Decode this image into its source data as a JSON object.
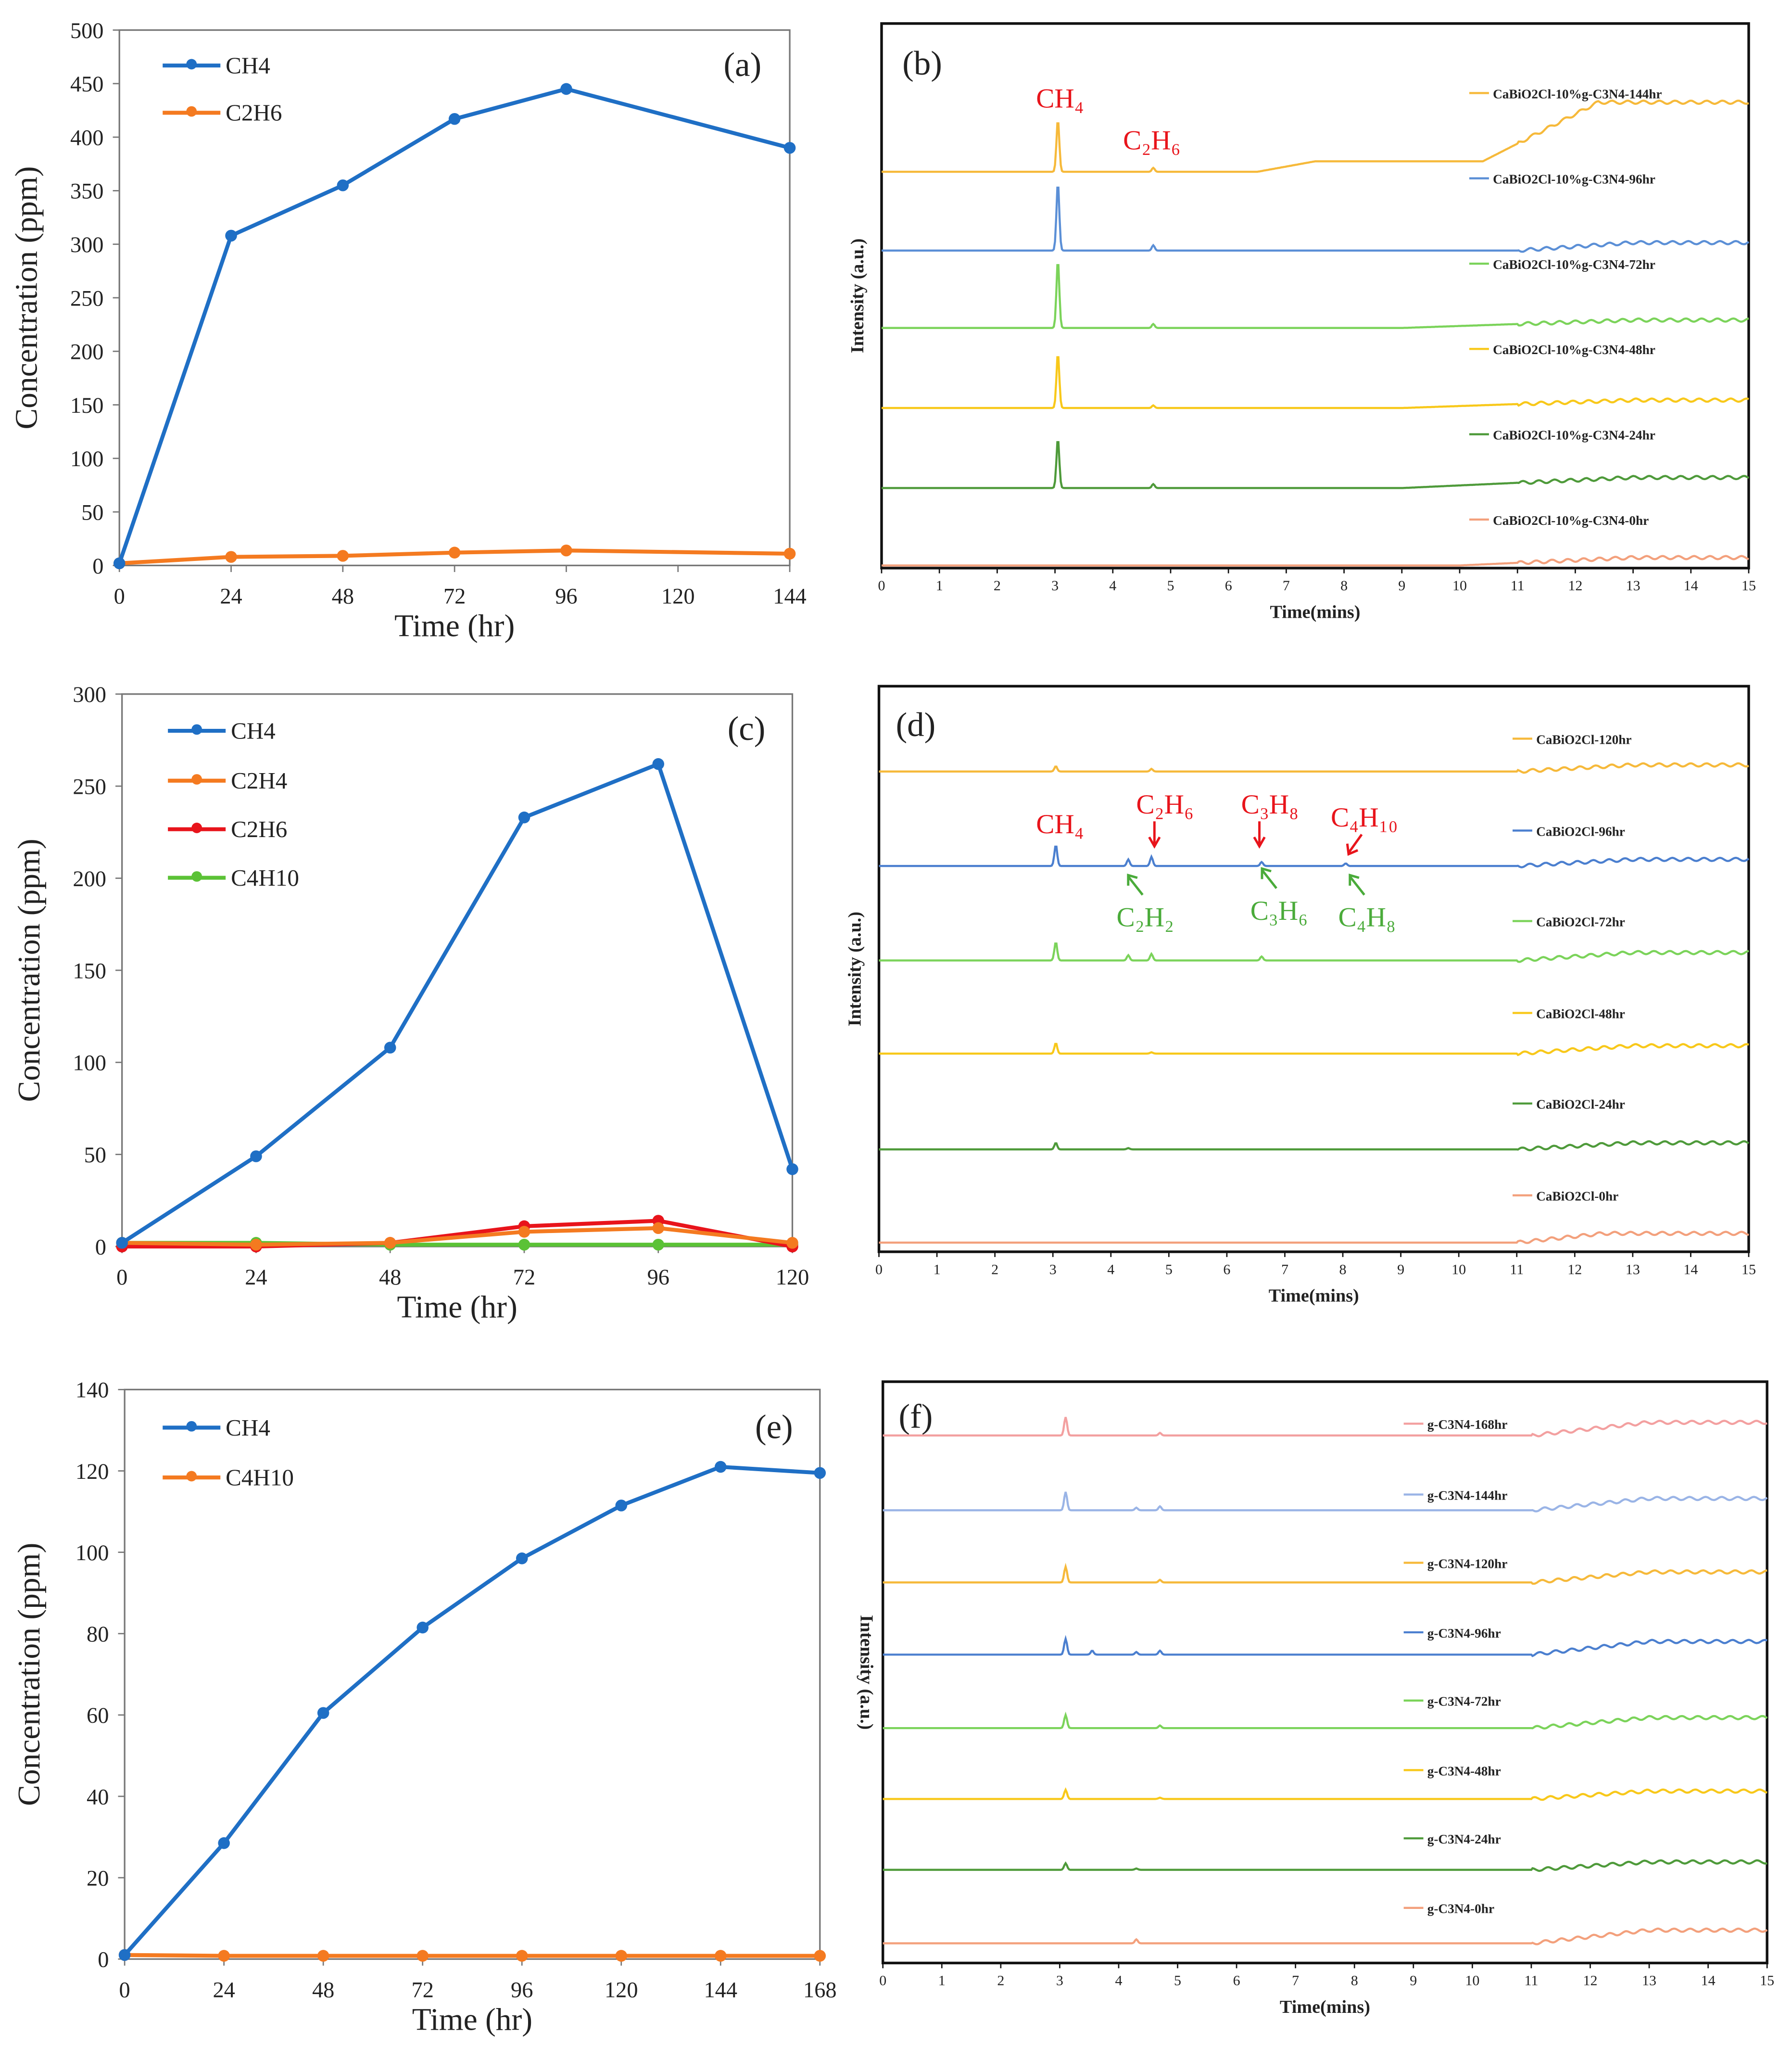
{
  "chart_data": [
    {
      "type": "line",
      "panel_label": "(a)",
      "xlabel": "Time (hr)",
      "ylabel": "Concentration (ppm)",
      "xlim": [
        0,
        144
      ],
      "ylim": [
        0,
        500
      ],
      "xticks": [
        0,
        24,
        48,
        72,
        96,
        120,
        144
      ],
      "yticks": [
        0,
        50,
        100,
        150,
        200,
        250,
        300,
        350,
        400,
        450,
        500
      ],
      "legend_position": "top-left",
      "series": [
        {
          "name": "CH4",
          "color": "#1f6fc5",
          "x": [
            0,
            24,
            48,
            72,
            96,
            144
          ],
          "y": [
            2,
            308,
            355,
            417,
            445,
            390
          ]
        },
        {
          "name": "C2H6",
          "color": "#f47a20",
          "x": [
            0,
            24,
            48,
            72,
            96,
            144
          ],
          "y": [
            2,
            8,
            9,
            12,
            14,
            11
          ]
        }
      ]
    },
    {
      "type": "line",
      "chart_kind": "chromatogram",
      "panel_label": "(b)",
      "xlabel": "Time(mins)",
      "ylabel": "Intensity (a.u.)",
      "xlim": [
        0,
        15
      ],
      "xticks": [
        0,
        1,
        2,
        3,
        4,
        5,
        6,
        7,
        8,
        9,
        10,
        11,
        12,
        13,
        14,
        15
      ],
      "legend_position": "right",
      "annotations": [
        {
          "text": "CH₄",
          "color": "#e8141b",
          "x": 3.05
        },
        {
          "text": "C₂H₆",
          "color": "#e8141b",
          "x": 4.7
        }
      ],
      "series": [
        {
          "name": "CaBiO2Cl-10%g-C3N4-144hr",
          "color": "#f6b93a",
          "peaks": [
            [
              3.05,
              40
            ],
            [
              4.7,
              3
            ]
          ],
          "drift": [
            [
              6.5,
              7.5,
              8
            ],
            [
              10.4,
              12.4,
              45
            ]
          ]
        },
        {
          "name": "CaBiO2Cl-10%g-C3N4-96hr",
          "color": "#5b8fd6",
          "peaks": [
            [
              3.05,
              52
            ],
            [
              4.7,
              4
            ]
          ],
          "drift": [
            [
              11,
              13,
              6
            ]
          ]
        },
        {
          "name": "CaBiO2Cl-10%g-C3N4-72hr",
          "color": "#7bd35a",
          "peaks": [
            [
              3.05,
              52
            ],
            [
              4.7,
              3
            ]
          ],
          "drift": [
            [
              9,
              13,
              6
            ]
          ]
        },
        {
          "name": "CaBiO2Cl-10%g-C3N4-48hr",
          "color": "#f8c81a",
          "peaks": [
            [
              3.05,
              42
            ],
            [
              4.7,
              2
            ]
          ],
          "drift": [
            [
              9,
              13,
              6
            ]
          ]
        },
        {
          "name": "CaBiO2Cl-10%g-C3N4-24hr",
          "color": "#4e9a3a",
          "peaks": [
            [
              3.05,
              38
            ],
            [
              4.7,
              3
            ]
          ],
          "drift": [
            [
              9,
              13,
              8
            ]
          ]
        },
        {
          "name": "CaBiO2Cl-10%g-C3N4-0hr",
          "color": "#f3a07c",
          "peaks": [],
          "drift": [
            [
              10,
              13,
              6
            ]
          ]
        }
      ]
    },
    {
      "type": "line",
      "panel_label": "(c)",
      "xlabel": "Time (hr)",
      "ylabel": "Concentration (ppm)",
      "xlim": [
        0,
        120
      ],
      "ylim": [
        0,
        300
      ],
      "xticks": [
        0,
        24,
        48,
        72,
        96,
        120
      ],
      "yticks": [
        0,
        50,
        100,
        150,
        200,
        250,
        300
      ],
      "legend_position": "top-left",
      "series": [
        {
          "name": "CH4",
          "color": "#1f6fc5",
          "x": [
            0,
            24,
            48,
            72,
            96,
            120
          ],
          "y": [
            2,
            49,
            108,
            233,
            262,
            42
          ]
        },
        {
          "name": "C2H4",
          "color": "#f47a20",
          "x": [
            0,
            24,
            48,
            72,
            96,
            120
          ],
          "y": [
            2,
            1,
            2,
            8,
            10,
            2
          ]
        },
        {
          "name": "C2H6",
          "color": "#e8141b",
          "x": [
            0,
            24,
            48,
            72,
            96,
            120
          ],
          "y": [
            0,
            0,
            2,
            11,
            14,
            0
          ]
        },
        {
          "name": "C4H10",
          "color": "#5bc236",
          "x": [
            0,
            24,
            48,
            72,
            96,
            120
          ],
          "y": [
            2,
            2,
            1,
            1,
            1,
            1
          ]
        }
      ]
    },
    {
      "type": "line",
      "chart_kind": "chromatogram",
      "panel_label": "(d)",
      "xlabel": "Time(mins)",
      "ylabel": "Intensity (a.u.)",
      "xlim": [
        0,
        15
      ],
      "xticks": [
        0,
        1,
        2,
        3,
        4,
        5,
        6,
        7,
        8,
        9,
        10,
        11,
        12,
        13,
        14,
        15
      ],
      "legend_position": "right",
      "annotations": [
        {
          "text": "CH₄",
          "color": "#e8141b",
          "x": 3.05
        },
        {
          "text": "C₂H₆",
          "color": "#e8141b",
          "x": 4.7
        },
        {
          "text": "C₃H₈",
          "color": "#e8141b",
          "x": 6.65
        },
        {
          "text": "C₄H₁₀",
          "color": "#e8141b",
          "x": 8.1
        },
        {
          "text": "C₂H₂",
          "color": "#4aab3a",
          "x": 4.3
        },
        {
          "text": "C₃H₆",
          "color": "#4aab3a",
          "x": 6.55
        },
        {
          "text": "C₄H₈",
          "color": "#4aab3a",
          "x": 7.95
        }
      ],
      "series": [
        {
          "name": "CaBiO2Cl-120hr",
          "color": "#f6b93a",
          "peaks": [
            [
              3.05,
              4
            ],
            [
              4.7,
              2
            ]
          ],
          "drift": [
            [
              11,
              13,
              5
            ]
          ]
        },
        {
          "name": "CaBiO2Cl-96hr",
          "color": "#4b7fcf",
          "peaks": [
            [
              3.05,
              16
            ],
            [
              4.3,
              5
            ],
            [
              4.7,
              7
            ],
            [
              6.6,
              3
            ],
            [
              8.05,
              2
            ]
          ],
          "drift": [
            [
              11,
              13,
              5
            ]
          ]
        },
        {
          "name": "CaBiO2Cl-72hr",
          "color": "#7bd35a",
          "peaks": [
            [
              3.05,
              14
            ],
            [
              4.3,
              4
            ],
            [
              4.7,
              5
            ],
            [
              6.6,
              3
            ]
          ],
          "drift": [
            [
              11,
              13,
              6
            ]
          ]
        },
        {
          "name": "CaBiO2Cl-48hr",
          "color": "#f8c81a",
          "peaks": [
            [
              3.05,
              8
            ],
            [
              4.7,
              1
            ]
          ],
          "drift": [
            [
              11,
              13,
              6
            ]
          ]
        },
        {
          "name": "CaBiO2Cl-24hr",
          "color": "#4e9a3a",
          "peaks": [
            [
              3.05,
              5
            ],
            [
              4.3,
              1
            ]
          ],
          "drift": [
            [
              11,
              13,
              5
            ]
          ]
        },
        {
          "name": "CaBiO2Cl-0hr",
          "color": "#f3a07c",
          "peaks": [],
          "drift": [
            [
              11,
              12.5,
              7
            ]
          ]
        }
      ]
    },
    {
      "type": "line",
      "panel_label": "(e)",
      "xlabel": "Time (hr)",
      "ylabel": "Concentration (ppm)",
      "xlim": [
        0,
        168
      ],
      "ylim": [
        0,
        140
      ],
      "xticks": [
        0,
        24,
        48,
        72,
        96,
        120,
        144,
        168
      ],
      "yticks": [
        0,
        20,
        40,
        60,
        80,
        100,
        120,
        140
      ],
      "legend_position": "top-left",
      "series": [
        {
          "name": "CH4",
          "color": "#1f6fc5",
          "x": [
            0,
            24,
            48,
            72,
            96,
            120,
            144,
            168
          ],
          "y": [
            1,
            28.5,
            60.5,
            81.5,
            98.5,
            111.5,
            121,
            119.5
          ]
        },
        {
          "name": "C4H10",
          "color": "#f47a20",
          "x": [
            0,
            24,
            48,
            72,
            96,
            120,
            144,
            168
          ],
          "y": [
            1,
            0.8,
            0.8,
            0.8,
            0.8,
            0.8,
            0.8,
            0.8
          ]
        }
      ]
    },
    {
      "type": "line",
      "chart_kind": "chromatogram",
      "panel_label": "(f)",
      "xlabel": "Time(mins)",
      "ylabel": "Intensity (a.u.)",
      "xlim": [
        0,
        15
      ],
      "xticks": [
        0,
        1,
        2,
        3,
        4,
        5,
        6,
        7,
        8,
        9,
        10,
        11,
        12,
        13,
        14,
        15
      ],
      "legend_position": "right",
      "annotations": [],
      "series": [
        {
          "name": "g-C3N4-168hr",
          "color": "#f3a0a0",
          "peaks": [
            [
              3.1,
              14
            ],
            [
              4.7,
              2
            ]
          ],
          "drift": [
            [
              11,
              13,
              10
            ]
          ]
        },
        {
          "name": "g-C3N4-144hr",
          "color": "#9ab4e6",
          "peaks": [
            [
              3.1,
              14
            ],
            [
              4.3,
              2
            ],
            [
              4.7,
              3
            ]
          ],
          "drift": [
            [
              11,
              13,
              9
            ]
          ]
        },
        {
          "name": "g-C3N4-120hr",
          "color": "#f6b93a",
          "peaks": [
            [
              3.1,
              12
            ],
            [
              4.7,
              2
            ]
          ],
          "drift": [
            [
              11,
              13,
              8
            ]
          ]
        },
        {
          "name": "g-C3N4-96hr",
          "color": "#4b7fcf",
          "peaks": [
            [
              3.1,
              12
            ],
            [
              3.55,
              3
            ],
            [
              4.3,
              2
            ],
            [
              4.7,
              3
            ]
          ],
          "drift": [
            [
              11,
              13,
              10
            ]
          ]
        },
        {
          "name": "g-C3N4-72hr",
          "color": "#7bd35a",
          "peaks": [
            [
              3.1,
              10
            ],
            [
              4.7,
              2
            ]
          ],
          "drift": [
            [
              11,
              13,
              8
            ]
          ]
        },
        {
          "name": "g-C3N4-48hr",
          "color": "#f8c81a",
          "peaks": [
            [
              3.1,
              7
            ],
            [
              4.7,
              1
            ]
          ],
          "drift": [
            [
              11,
              13,
              6
            ]
          ]
        },
        {
          "name": "g-C3N4-24hr",
          "color": "#4e9a3a",
          "peaks": [
            [
              3.1,
              5
            ],
            [
              4.3,
              1
            ]
          ],
          "drift": [
            [
              11,
              13,
              6
            ]
          ]
        },
        {
          "name": "g-C3N4-0hr",
          "color": "#f3a07c",
          "peaks": [
            [
              4.3,
              3
            ]
          ],
          "drift": [
            [
              11,
              13,
              10
            ]
          ]
        }
      ]
    }
  ]
}
